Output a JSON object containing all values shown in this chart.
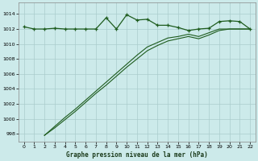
{
  "title": "Graphe pression niveau de la mer (hPa)",
  "bg_color": "#cceaea",
  "grid_color": "#aacccc",
  "line_color": "#1e5c1e",
  "xlim": [
    -0.5,
    22.5
  ],
  "ylim": [
    997,
    1015.5
  ],
  "yticks": [
    998,
    1000,
    1002,
    1004,
    1006,
    1008,
    1010,
    1012,
    1014
  ],
  "xticks": [
    0,
    1,
    2,
    3,
    4,
    5,
    6,
    7,
    8,
    9,
    10,
    11,
    12,
    13,
    14,
    15,
    16,
    17,
    18,
    19,
    20,
    21,
    22
  ],
  "series1_x": [
    0,
    1,
    2,
    3,
    4,
    5,
    6,
    7,
    8,
    9,
    10,
    11,
    12,
    13,
    14,
    15,
    16,
    17,
    18,
    19,
    20,
    21,
    22
  ],
  "series1_y": [
    1012.3,
    1012.0,
    1012.0,
    1012.1,
    1012.0,
    1012.0,
    1012.0,
    1012.0,
    1013.5,
    1012.0,
    1013.9,
    1013.2,
    1013.3,
    1012.5,
    1012.5,
    1012.2,
    1011.8,
    1012.0,
    1012.1,
    1013.0,
    1013.1,
    1013.0,
    1012.0
  ],
  "series2_x": [
    2,
    3,
    4,
    5,
    6,
    7,
    8,
    9,
    10,
    11,
    12,
    13,
    14,
    15,
    16,
    17,
    18,
    19,
    20,
    21,
    22
  ],
  "series2_y": [
    997.8,
    999.0,
    1000.2,
    1001.3,
    1002.5,
    1003.7,
    1004.9,
    1006.1,
    1007.3,
    1008.5,
    1009.6,
    1010.2,
    1010.8,
    1011.0,
    1011.3,
    1011.0,
    1011.5,
    1012.0,
    1012.0,
    1012.0,
    1012.0
  ],
  "series3_x": [
    2,
    3,
    4,
    5,
    6,
    7,
    8,
    9,
    10,
    11,
    12,
    13,
    14,
    15,
    16,
    17,
    18,
    19,
    20,
    21,
    22
  ],
  "series3_y": [
    997.8,
    998.8,
    999.9,
    1001.0,
    1002.2,
    1003.4,
    1004.5,
    1005.7,
    1006.9,
    1008.0,
    1009.1,
    1009.8,
    1010.4,
    1010.7,
    1011.0,
    1010.7,
    1011.2,
    1011.8,
    1012.0,
    1012.0,
    1012.0
  ]
}
